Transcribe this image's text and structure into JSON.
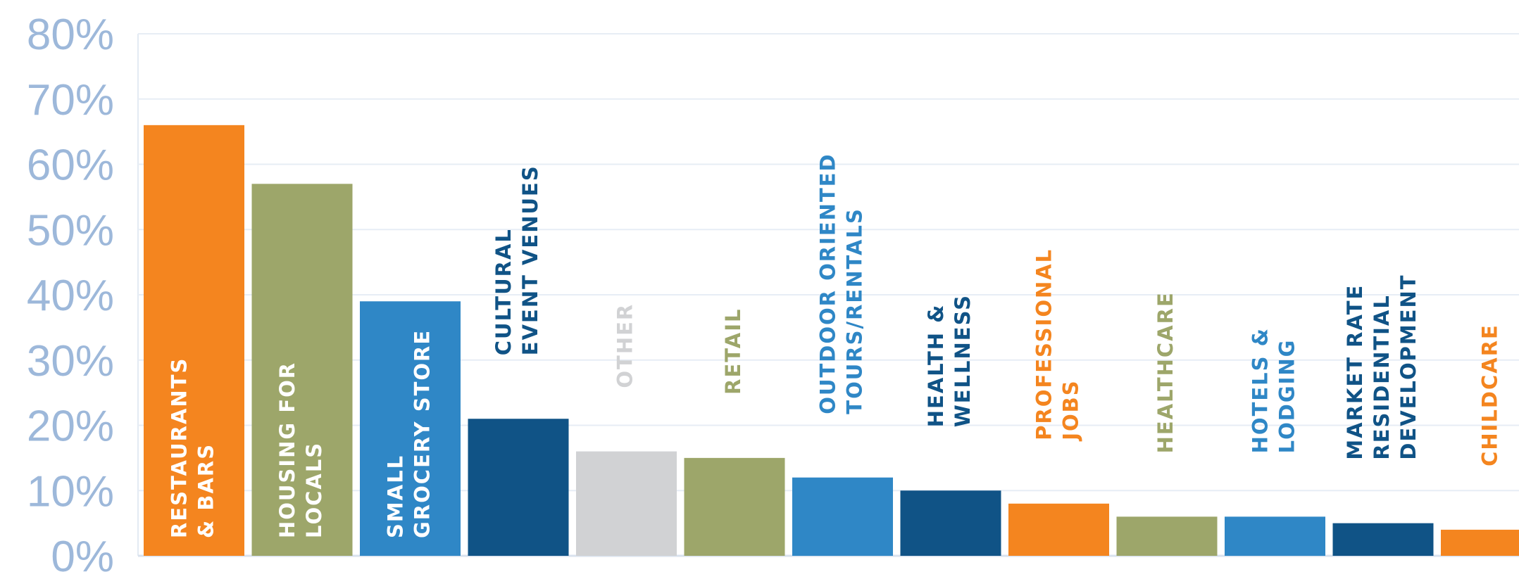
{
  "chart_data": {
    "type": "bar",
    "ylim": [
      0,
      80
    ],
    "y_ticks": [
      "0%",
      "10%",
      "20%",
      "30%",
      "40%",
      "50%",
      "60%",
      "70%",
      "80%"
    ],
    "grid": true,
    "categories": [
      [
        "RESTAURANTS",
        "& BARS"
      ],
      [
        "HOUSING FOR",
        "LOCALS"
      ],
      [
        "SMALL",
        "GROCERY STORE"
      ],
      [
        "CULTURAL",
        "EVENT VENUES"
      ],
      [
        "OTHER"
      ],
      [
        "RETAIL"
      ],
      [
        "OUTDOOR ORIENTED",
        "TOURS/RENTALS"
      ],
      [
        "HEALTH &",
        "WELLNESS"
      ],
      [
        "PROFESSIONAL",
        "JOBS"
      ],
      [
        "HEALTHCARE"
      ],
      [
        "HOTELS &",
        "LODGING"
      ],
      [
        "MARKET RATE",
        "RESIDENTIAL",
        "DEVELOPMENT"
      ],
      [
        "CHILDCARE"
      ]
    ],
    "values": [
      66,
      57,
      39,
      21,
      16,
      15,
      12,
      10,
      8,
      6,
      6,
      5,
      4
    ],
    "colors": [
      "#F4851F",
      "#9DA66A",
      "#2F87C6",
      "#105386",
      "#D1D2D4",
      "#9DA66A",
      "#2F87C6",
      "#105386",
      "#F4851F",
      "#9DA66A",
      "#2F87C6",
      "#105386",
      "#F4851F"
    ],
    "label_position": [
      "inside",
      "inside",
      "inside",
      "above",
      "above",
      "above",
      "above",
      "above",
      "above",
      "above",
      "above",
      "above",
      "above"
    ],
    "label_colors": [
      "#FFFFFF",
      "#FFFFFF",
      "#FFFFFF",
      "#105386",
      "#D1D2D4",
      "#9DA66A",
      "#2F87C6",
      "#105386",
      "#F4851F",
      "#9DA66A",
      "#2F87C6",
      "#105386",
      "#F4851F"
    ]
  }
}
